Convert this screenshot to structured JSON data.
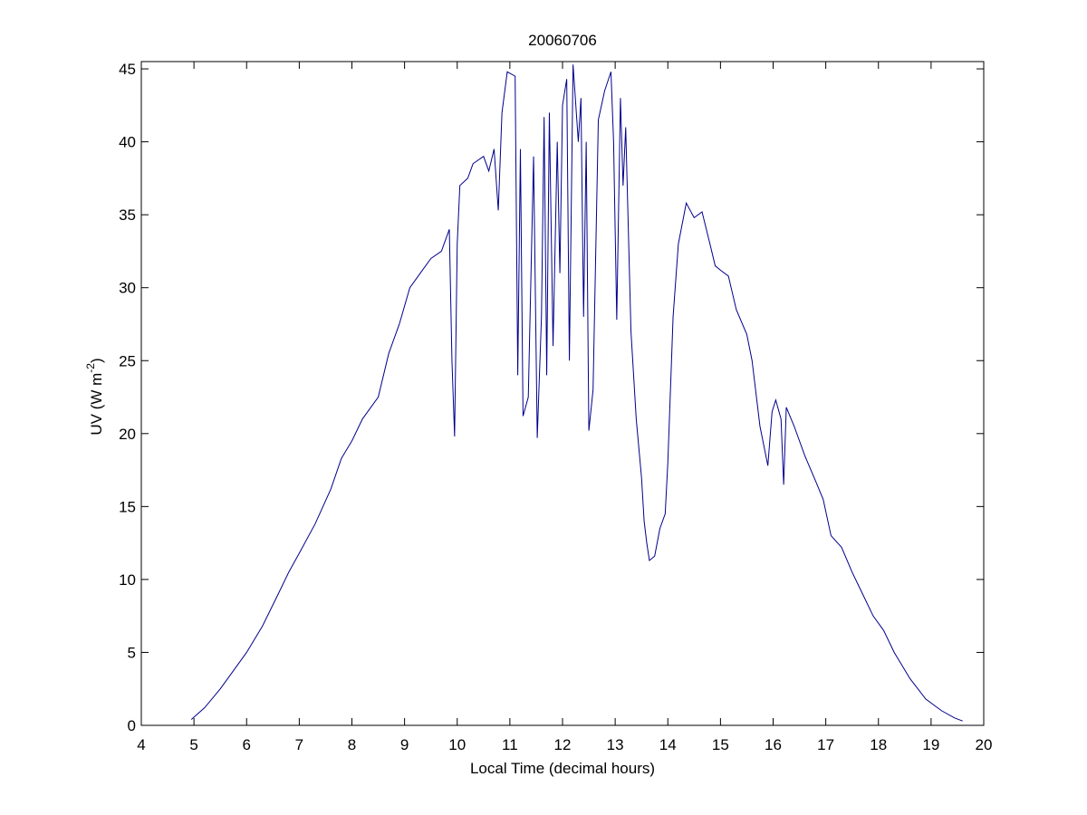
{
  "chart_data": {
    "type": "line",
    "title": "20060706",
    "x_label": "Local Time (decimal hours)",
    "y_label": {
      "text": "UV (W m",
      "sup": "-2",
      "tail": ")"
    },
    "xlim": [
      4,
      20
    ],
    "xticks": [
      4,
      5,
      6,
      7,
      8,
      9,
      10,
      11,
      12,
      13,
      14,
      15,
      16,
      17,
      18,
      19,
      20
    ],
    "ylim": [
      0,
      45.5
    ],
    "yticks": [
      0,
      5,
      10,
      15,
      20,
      25,
      30,
      35,
      40,
      45
    ],
    "x": [
      4.95,
      5.2,
      5.5,
      5.8,
      6.0,
      6.3,
      6.6,
      6.8,
      7.0,
      7.3,
      7.6,
      7.8,
      8.0,
      8.2,
      8.5,
      8.7,
      8.9,
      9.1,
      9.3,
      9.5,
      9.7,
      9.85,
      9.9,
      9.95,
      10.0,
      10.05,
      10.2,
      10.3,
      10.5,
      10.6,
      10.7,
      10.78,
      10.85,
      10.95,
      11.1,
      11.15,
      11.2,
      11.25,
      11.35,
      11.45,
      11.52,
      11.6,
      11.65,
      11.7,
      11.75,
      11.82,
      11.9,
      11.95,
      12.0,
      12.08,
      12.13,
      12.2,
      12.3,
      12.35,
      12.4,
      12.45,
      12.5,
      12.58,
      12.68,
      12.8,
      12.92,
      12.97,
      13.03,
      13.1,
      13.15,
      13.2,
      13.3,
      13.4,
      13.5,
      13.55,
      13.6,
      13.65,
      13.75,
      13.85,
      13.95,
      14.0,
      14.1,
      14.2,
      14.35,
      14.5,
      14.65,
      14.8,
      14.9,
      15.0,
      15.15,
      15.3,
      15.5,
      15.6,
      15.75,
      15.9,
      15.98,
      16.05,
      16.15,
      16.2,
      16.25,
      16.4,
      16.6,
      16.8,
      16.95,
      17.1,
      17.3,
      17.5,
      17.7,
      17.9,
      18.1,
      18.3,
      18.6,
      18.9,
      19.2,
      19.45,
      19.6
    ],
    "series": [
      {
        "color": "#00008b",
        "values": [
          0.4,
          1.2,
          2.5,
          4.0,
          5.0,
          6.8,
          9.0,
          10.5,
          11.8,
          13.8,
          16.2,
          18.3,
          19.5,
          21.0,
          22.5,
          25.5,
          27.5,
          30.0,
          31.0,
          32.0,
          32.5,
          34.0,
          25,
          19.8,
          33,
          37,
          37.5,
          38.5,
          39,
          38,
          39.5,
          35.3,
          42,
          44.8,
          44.5,
          24,
          39.5,
          21.2,
          22.5,
          39,
          19.7,
          28,
          41.7,
          24,
          42,
          26,
          40,
          31,
          42.5,
          44.3,
          25,
          45.3,
          40,
          43,
          28,
          40,
          20.2,
          23,
          41.5,
          43.5,
          44.8,
          40,
          27.8,
          43,
          37,
          41,
          27,
          21,
          17,
          14,
          12.5,
          11.3,
          11.6,
          13.5,
          14.5,
          18,
          28,
          33,
          35.8,
          34.8,
          35.2,
          33,
          31.5,
          31.2,
          30.8,
          28.5,
          26.8,
          25,
          20.5,
          17.8,
          21.5,
          22.3,
          21,
          16.5,
          21.8,
          20.5,
          18.5,
          16.8,
          15.5,
          13,
          12.2,
          10.5,
          9,
          7.5,
          6.5,
          5.0,
          3.2,
          1.8,
          1.0,
          0.5,
          0.3
        ]
      }
    ]
  }
}
